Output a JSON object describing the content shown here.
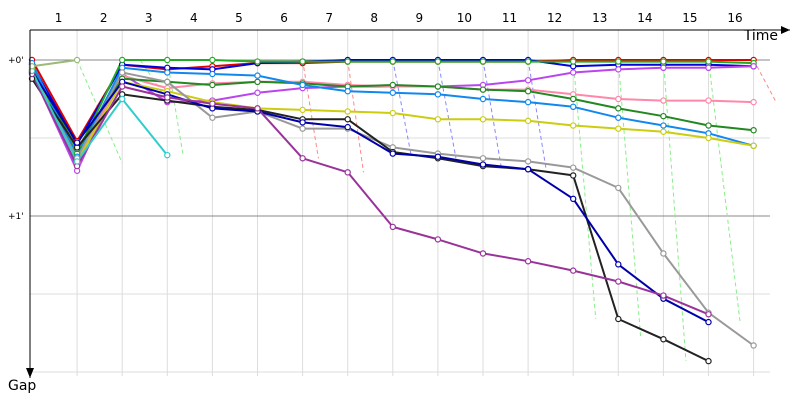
{
  "chart_data": {
    "type": "line",
    "title": "",
    "xlabel": "Time",
    "ylabel": "Gap",
    "laps": [
      "1",
      "2",
      "3",
      "4",
      "5",
      "6",
      "7",
      "8",
      "9",
      "10",
      "11",
      "12",
      "13",
      "14",
      "15",
      "16"
    ],
    "y_ticks": [
      "+0'",
      "+1'"
    ],
    "ylim_min": [
      0,
      2
    ],
    "grid": true,
    "series": [
      {
        "color": "#e00000",
        "points": [
          [
            0,
            0.0
          ],
          [
            1,
            0.52
          ],
          [
            2,
            0.03
          ],
          [
            3,
            0.06
          ],
          [
            4,
            0.04
          ],
          [
            5,
            0.02
          ],
          [
            6,
            0.02
          ],
          [
            7,
            0.01
          ],
          [
            8,
            0.01
          ],
          [
            9,
            0.01
          ],
          [
            10,
            0.01
          ],
          [
            11,
            0.01
          ],
          [
            12,
            0.0
          ],
          [
            13,
            0.0
          ],
          [
            14,
            0.0
          ],
          [
            15,
            0.0
          ],
          [
            16,
            0.0
          ]
        ]
      },
      {
        "color": "#0000dd",
        "points": [
          [
            0,
            0.03
          ],
          [
            1,
            0.54
          ],
          [
            2,
            0.03
          ],
          [
            3,
            0.05
          ],
          [
            4,
            0.06
          ],
          [
            5,
            0.02
          ],
          [
            6,
            0.01
          ],
          [
            7,
            0.0
          ],
          [
            8,
            0.0
          ],
          [
            9,
            0.0
          ],
          [
            10,
            0.0
          ],
          [
            11,
            0.0
          ],
          [
            12,
            0.04
          ],
          [
            13,
            0.03
          ],
          [
            14,
            0.03
          ],
          [
            15,
            0.03
          ],
          [
            16,
            0.04
          ]
        ]
      },
      {
        "color": "#22aa22",
        "points": [
          [
            0,
            0.06
          ],
          [
            1,
            0.6
          ],
          [
            2,
            0.0
          ],
          [
            3,
            0.0
          ],
          [
            4,
            0.0
          ],
          [
            5,
            0.01
          ],
          [
            6,
            0.01
          ],
          [
            7,
            0.01
          ],
          [
            8,
            0.01
          ],
          [
            9,
            0.01
          ],
          [
            10,
            0.01
          ],
          [
            11,
            0.01
          ],
          [
            12,
            0.01
          ],
          [
            13,
            0.01
          ],
          [
            14,
            0.01
          ],
          [
            15,
            0.01
          ],
          [
            16,
            0.02
          ]
        ]
      },
      {
        "color": "#bb44ee",
        "points": [
          [
            0,
            0.08
          ],
          [
            1,
            0.71
          ],
          [
            2,
            0.09
          ],
          [
            3,
            0.27
          ],
          [
            4,
            0.26
          ],
          [
            5,
            0.21
          ],
          [
            6,
            0.18
          ],
          [
            7,
            0.17
          ],
          [
            8,
            0.17
          ],
          [
            9,
            0.17
          ],
          [
            10,
            0.16
          ],
          [
            11,
            0.13
          ],
          [
            12,
            0.08
          ],
          [
            13,
            0.06
          ],
          [
            14,
            0.05
          ],
          [
            15,
            0.05
          ],
          [
            16,
            0.04
          ]
        ]
      },
      {
        "color": "#ff88aa",
        "points": [
          [
            0,
            0.08
          ],
          [
            1,
            0.66
          ],
          [
            2,
            0.1
          ],
          [
            3,
            0.18
          ],
          [
            4,
            0.15
          ],
          [
            5,
            0.14
          ],
          [
            6,
            0.14
          ],
          [
            7,
            0.16
          ],
          [
            8,
            0.17
          ],
          [
            9,
            0.17
          ],
          [
            10,
            0.19
          ],
          [
            11,
            0.19
          ],
          [
            12,
            0.22
          ],
          [
            13,
            0.25
          ],
          [
            14,
            0.26
          ],
          [
            15,
            0.26
          ],
          [
            16,
            0.27
          ]
        ]
      },
      {
        "color": "#228822",
        "points": [
          [
            0,
            0.05
          ],
          [
            1,
            0.57
          ],
          [
            2,
            0.12
          ],
          [
            3,
            0.14
          ],
          [
            4,
            0.16
          ],
          [
            5,
            0.14
          ],
          [
            6,
            0.15
          ],
          [
            7,
            0.17
          ],
          [
            8,
            0.16
          ],
          [
            9,
            0.17
          ],
          [
            10,
            0.19
          ],
          [
            11,
            0.2
          ],
          [
            12,
            0.25
          ],
          [
            13,
            0.31
          ],
          [
            14,
            0.36
          ],
          [
            15,
            0.42
          ],
          [
            16,
            0.45
          ]
        ]
      },
      {
        "color": "#1188ee",
        "points": [
          [
            0,
            0.02
          ],
          [
            1,
            0.62
          ],
          [
            2,
            0.05
          ],
          [
            3,
            0.08
          ],
          [
            4,
            0.09
          ],
          [
            5,
            0.1
          ],
          [
            6,
            0.16
          ],
          [
            7,
            0.2
          ],
          [
            8,
            0.21
          ],
          [
            9,
            0.22
          ],
          [
            10,
            0.25
          ],
          [
            11,
            0.27
          ],
          [
            12,
            0.3
          ],
          [
            13,
            0.37
          ],
          [
            14,
            0.42
          ],
          [
            15,
            0.47
          ],
          [
            16,
            0.55
          ]
        ]
      },
      {
        "color": "#cccc11",
        "points": [
          [
            0,
            0.06
          ],
          [
            1,
            0.65
          ],
          [
            2,
            0.14
          ],
          [
            3,
            0.2
          ],
          [
            4,
            0.27
          ],
          [
            5,
            0.31
          ],
          [
            6,
            0.32
          ],
          [
            7,
            0.33
          ],
          [
            8,
            0.34
          ],
          [
            9,
            0.38
          ],
          [
            10,
            0.38
          ],
          [
            11,
            0.39
          ],
          [
            12,
            0.42
          ],
          [
            13,
            0.44
          ],
          [
            14,
            0.46
          ],
          [
            15,
            0.5
          ],
          [
            16,
            0.55
          ]
        ]
      },
      {
        "color": "#999999",
        "points": [
          [
            0,
            0.08
          ],
          [
            1,
            0.63
          ],
          [
            2,
            0.08
          ],
          [
            3,
            0.14
          ],
          [
            4,
            0.37
          ],
          [
            5,
            0.33
          ],
          [
            6,
            0.44
          ],
          [
            7,
            0.44
          ],
          [
            8,
            0.56
          ],
          [
            9,
            0.6
          ],
          [
            10,
            0.63
          ],
          [
            11,
            0.65
          ],
          [
            12,
            0.69
          ],
          [
            13,
            0.82
          ],
          [
            14,
            1.24
          ],
          [
            15,
            1.62
          ],
          [
            16,
            1.83
          ]
        ]
      },
      {
        "color": "#222222",
        "points": [
          [
            0,
            0.12
          ],
          [
            1,
            0.56
          ],
          [
            2,
            0.22
          ],
          [
            3,
            0.26
          ],
          [
            4,
            0.3
          ],
          [
            5,
            0.32
          ],
          [
            6,
            0.38
          ],
          [
            7,
            0.38
          ],
          [
            8,
            0.59
          ],
          [
            9,
            0.63
          ],
          [
            10,
            0.68
          ],
          [
            11,
            0.7
          ],
          [
            12,
            0.74
          ],
          [
            13,
            1.66
          ],
          [
            14,
            1.79
          ],
          [
            15,
            1.93
          ]
        ]
      },
      {
        "color": "#0000aa",
        "points": [
          [
            0,
            0.07
          ],
          [
            1,
            0.53
          ],
          [
            2,
            0.14
          ],
          [
            3,
            0.22
          ],
          [
            4,
            0.31
          ],
          [
            5,
            0.33
          ],
          [
            6,
            0.4
          ],
          [
            7,
            0.43
          ],
          [
            8,
            0.6
          ],
          [
            9,
            0.62
          ],
          [
            10,
            0.67
          ],
          [
            11,
            0.7
          ],
          [
            12,
            0.89
          ],
          [
            13,
            1.31
          ],
          [
            14,
            1.53
          ],
          [
            15,
            1.68
          ]
        ]
      },
      {
        "color": "#993399",
        "points": [
          [
            0,
            0.09
          ],
          [
            1,
            0.68
          ],
          [
            2,
            0.17
          ],
          [
            3,
            0.24
          ],
          [
            4,
            0.28
          ],
          [
            5,
            0.31
          ],
          [
            6,
            0.63
          ],
          [
            7,
            0.72
          ],
          [
            8,
            1.07
          ],
          [
            9,
            1.15
          ],
          [
            10,
            1.24
          ],
          [
            11,
            1.29
          ],
          [
            12,
            1.35
          ],
          [
            13,
            1.42
          ],
          [
            14,
            1.51
          ],
          [
            15,
            1.63
          ]
        ]
      },
      {
        "color": "#33cccc",
        "points": [
          [
            0,
            0.07
          ],
          [
            1,
            0.65
          ],
          [
            2,
            0.25
          ],
          [
            3,
            0.61
          ]
        ]
      },
      {
        "color": "#99bb77",
        "points": [
          [
            0,
            0.04
          ],
          [
            1,
            0.0
          ]
        ]
      }
    ],
    "pit_color_a": "#ff8888",
    "pit_color_b": "#88ee88",
    "pit_color_c": "#8888ff",
    "pits": [
      {
        "color": "#88ee88",
        "from": [
          1,
          0.0
        ],
        "to": [
          2,
          0.66
        ]
      },
      {
        "color": "#88ee88",
        "from": [
          3,
          0.0
        ],
        "to": [
          3.35,
          0.61
        ]
      },
      {
        "color": "#88ee88",
        "from": [
          2.4,
          0.0
        ],
        "to": [
          3,
          0.26
        ]
      },
      {
        "color": "#ff8888",
        "from": [
          6,
          0.0
        ],
        "to": [
          6.35,
          0.63
        ]
      },
      {
        "color": "#ff8888",
        "from": [
          7,
          0.0
        ],
        "to": [
          7.35,
          0.72
        ]
      },
      {
        "color": "#8888ff",
        "from": [
          8,
          0.0
        ],
        "to": [
          8.4,
          0.6
        ]
      },
      {
        "color": "#8888ff",
        "from": [
          9,
          0.0
        ],
        "to": [
          9.4,
          0.63
        ]
      },
      {
        "color": "#8888ff",
        "from": [
          10,
          0.0
        ],
        "to": [
          10.4,
          0.68
        ]
      },
      {
        "color": "#8888ff",
        "from": [
          11,
          0.0
        ],
        "to": [
          11.4,
          0.7
        ]
      },
      {
        "color": "#88ee88",
        "from": [
          12,
          0.0
        ],
        "to": [
          12.5,
          1.66
        ]
      },
      {
        "color": "#88ee88",
        "from": [
          13,
          0.0
        ],
        "to": [
          13.5,
          1.79
        ]
      },
      {
        "color": "#88ee88",
        "from": [
          14,
          0.0
        ],
        "to": [
          14.5,
          1.93
        ]
      },
      {
        "color": "#88ee88",
        "from": [
          15,
          0.0
        ],
        "to": [
          15.7,
          1.68
        ]
      },
      {
        "color": "#ff8888",
        "from": [
          16,
          0.0
        ],
        "to": [
          16.5,
          0.27
        ]
      }
    ]
  }
}
